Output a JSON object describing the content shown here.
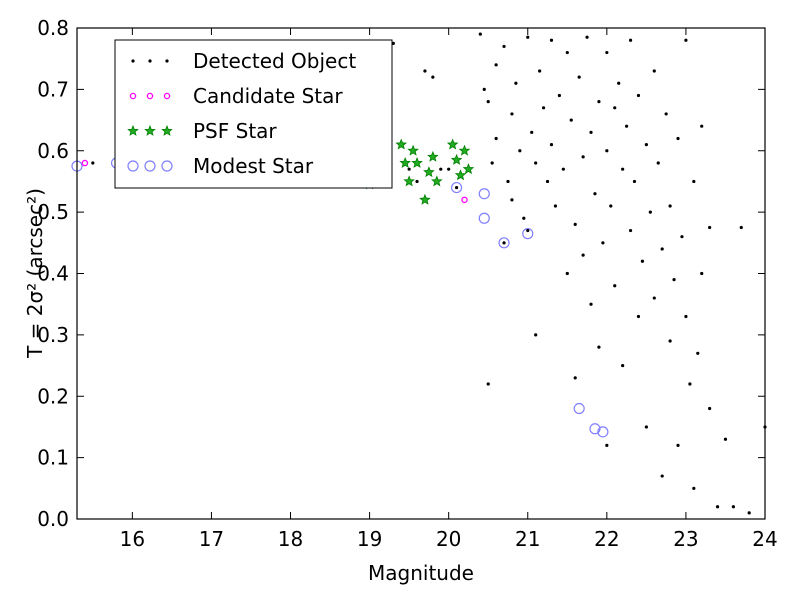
{
  "chart_data": {
    "type": "scatter",
    "xlabel": "Magnitude",
    "ylabel": "T = 2σ² (arcsec²)",
    "xlim": [
      15.3,
      24
    ],
    "ylim": [
      0.0,
      0.8
    ],
    "xticks": [
      16,
      17,
      18,
      19,
      20,
      21,
      22,
      23,
      24
    ],
    "yticks": [
      0.0,
      0.1,
      0.2,
      0.3,
      0.4,
      0.5,
      0.6,
      0.7,
      0.8
    ],
    "xtick_labels": [
      "16",
      "17",
      "18",
      "19",
      "20",
      "21",
      "22",
      "23",
      "24"
    ],
    "ytick_labels": [
      "0.0",
      "0.1",
      "0.2",
      "0.3",
      "0.4",
      "0.5",
      "0.6",
      "0.7",
      "0.8"
    ],
    "grid": false,
    "legend_placement": "top-left",
    "series": [
      {
        "name": "Detected Object",
        "marker": "dot",
        "color": "#000000",
        "points": [
          [
            15.5,
            0.58
          ],
          [
            16.0,
            0.575
          ],
          [
            16.5,
            0.57
          ],
          [
            17.0,
            0.568
          ],
          [
            17.5,
            0.565
          ],
          [
            18.0,
            0.56
          ],
          [
            18.4,
            0.555
          ],
          [
            18.8,
            0.55
          ],
          [
            19.0,
            0.545
          ],
          [
            19.2,
            0.555
          ],
          [
            19.3,
            0.775
          ],
          [
            19.4,
            0.61
          ],
          [
            19.5,
            0.57
          ],
          [
            19.6,
            0.55
          ],
          [
            19.7,
            0.73
          ],
          [
            19.8,
            0.72
          ],
          [
            19.9,
            0.57
          ],
          [
            20.0,
            0.57
          ],
          [
            20.1,
            0.54
          ],
          [
            20.2,
            0.52
          ],
          [
            20.4,
            0.79
          ],
          [
            20.45,
            0.7
          ],
          [
            20.5,
            0.68
          ],
          [
            20.5,
            0.22
          ],
          [
            20.55,
            0.58
          ],
          [
            20.6,
            0.74
          ],
          [
            20.6,
            0.62
          ],
          [
            20.7,
            0.45
          ],
          [
            20.7,
            0.77
          ],
          [
            20.75,
            0.55
          ],
          [
            20.8,
            0.66
          ],
          [
            20.8,
            0.52
          ],
          [
            20.85,
            0.71
          ],
          [
            20.9,
            0.6
          ],
          [
            20.95,
            0.49
          ],
          [
            21.0,
            0.785
          ],
          [
            21.0,
            0.47
          ],
          [
            21.05,
            0.63
          ],
          [
            21.1,
            0.58
          ],
          [
            21.1,
            0.3
          ],
          [
            21.15,
            0.73
          ],
          [
            21.2,
            0.67
          ],
          [
            21.25,
            0.55
          ],
          [
            21.3,
            0.78
          ],
          [
            21.3,
            0.61
          ],
          [
            21.35,
            0.51
          ],
          [
            21.4,
            0.69
          ],
          [
            21.45,
            0.57
          ],
          [
            21.5,
            0.76
          ],
          [
            21.5,
            0.4
          ],
          [
            21.55,
            0.65
          ],
          [
            21.6,
            0.48
          ],
          [
            21.6,
            0.23
          ],
          [
            21.65,
            0.72
          ],
          [
            21.7,
            0.59
          ],
          [
            21.7,
            0.43
          ],
          [
            21.75,
            0.785
          ],
          [
            21.8,
            0.63
          ],
          [
            21.8,
            0.35
          ],
          [
            21.85,
            0.53
          ],
          [
            21.9,
            0.68
          ],
          [
            21.9,
            0.28
          ],
          [
            21.95,
            0.45
          ],
          [
            22.0,
            0.76
          ],
          [
            22.0,
            0.6
          ],
          [
            22.0,
            0.12
          ],
          [
            22.05,
            0.51
          ],
          [
            22.1,
            0.67
          ],
          [
            22.1,
            0.38
          ],
          [
            22.15,
            0.71
          ],
          [
            22.2,
            0.57
          ],
          [
            22.2,
            0.25
          ],
          [
            22.25,
            0.64
          ],
          [
            22.3,
            0.47
          ],
          [
            22.3,
            0.78
          ],
          [
            22.35,
            0.55
          ],
          [
            22.4,
            0.69
          ],
          [
            22.4,
            0.33
          ],
          [
            22.45,
            0.42
          ],
          [
            22.5,
            0.61
          ],
          [
            22.5,
            0.15
          ],
          [
            22.55,
            0.5
          ],
          [
            22.6,
            0.73
          ],
          [
            22.6,
            0.36
          ],
          [
            22.65,
            0.58
          ],
          [
            22.7,
            0.44
          ],
          [
            22.7,
            0.07
          ],
          [
            22.75,
            0.66
          ],
          [
            22.8,
            0.29
          ],
          [
            22.8,
            0.51
          ],
          [
            22.85,
            0.39
          ],
          [
            22.9,
            0.62
          ],
          [
            22.9,
            0.12
          ],
          [
            22.95,
            0.46
          ],
          [
            23.0,
            0.78
          ],
          [
            23.0,
            0.33
          ],
          [
            23.05,
            0.22
          ],
          [
            23.1,
            0.55
          ],
          [
            23.1,
            0.05
          ],
          [
            23.15,
            0.27
          ],
          [
            23.2,
            0.4
          ],
          [
            23.2,
            0.64
          ],
          [
            23.3,
            0.18
          ],
          [
            23.3,
            0.475
          ],
          [
            23.4,
            0.02
          ],
          [
            23.5,
            0.13
          ],
          [
            23.6,
            0.02
          ],
          [
            23.7,
            0.475
          ],
          [
            23.8,
            0.01
          ],
          [
            24.0,
            0.15
          ]
        ]
      },
      {
        "name": "Candidate Star",
        "marker": "circle",
        "color": "#ff00ff",
        "points": [
          [
            15.4,
            0.58
          ],
          [
            20.2,
            0.52
          ]
        ]
      },
      {
        "name": "PSF Star",
        "marker": "star",
        "color": "#008000",
        "points": [
          [
            19.0,
            0.545
          ],
          [
            19.2,
            0.575
          ],
          [
            19.4,
            0.61
          ],
          [
            19.45,
            0.58
          ],
          [
            19.5,
            0.55
          ],
          [
            19.55,
            0.6
          ],
          [
            19.6,
            0.58
          ],
          [
            19.7,
            0.52
          ],
          [
            19.75,
            0.565
          ],
          [
            19.8,
            0.59
          ],
          [
            19.85,
            0.55
          ],
          [
            20.05,
            0.61
          ],
          [
            20.1,
            0.585
          ],
          [
            20.15,
            0.56
          ],
          [
            20.2,
            0.6
          ],
          [
            20.25,
            0.57
          ]
        ]
      },
      {
        "name": "Modest Star",
        "marker": "open-circle",
        "color": "#8080ff",
        "points": [
          [
            15.3,
            0.575
          ],
          [
            15.8,
            0.58
          ],
          [
            16.2,
            0.575
          ],
          [
            20.1,
            0.54
          ],
          [
            20.45,
            0.53
          ],
          [
            20.45,
            0.49
          ],
          [
            20.7,
            0.45
          ],
          [
            21.0,
            0.465
          ],
          [
            21.65,
            0.18
          ],
          [
            21.85,
            0.147
          ],
          [
            21.95,
            0.142
          ]
        ]
      }
    ]
  }
}
